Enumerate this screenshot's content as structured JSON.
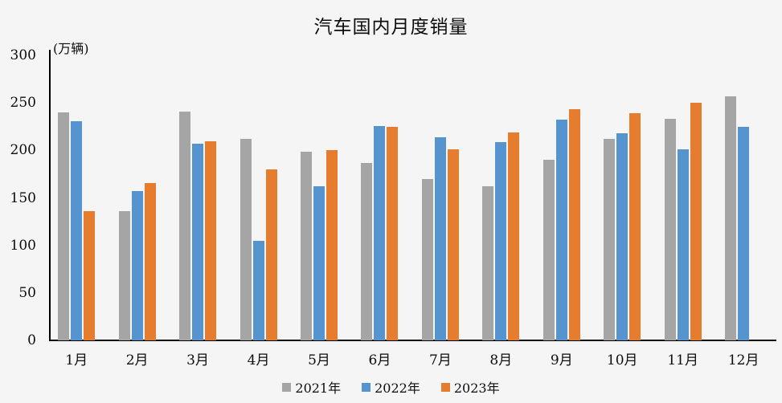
{
  "chart_data": {
    "type": "bar",
    "title": "汽车国内月度销量",
    "unit_label": "(万辆)",
    "xlabel": "",
    "ylabel": "万辆",
    "categories": [
      "1月",
      "2月",
      "3月",
      "4月",
      "5月",
      "6月",
      "7月",
      "8月",
      "9月",
      "10月",
      "11月",
      "12月"
    ],
    "series": [
      {
        "name": "2021年",
        "color": "#A5A5A5",
        "values": [
          240,
          136,
          241,
          212,
          199,
          187,
          170,
          162,
          190,
          212,
          233,
          257
        ]
      },
      {
        "name": "2022年",
        "color": "#5594CE",
        "values": [
          231,
          157,
          207,
          105,
          162,
          226,
          214,
          209,
          232,
          218,
          201,
          225
        ]
      },
      {
        "name": "2023年",
        "color": "#E67C2E",
        "values": [
          136,
          166,
          210,
          180,
          200,
          225,
          201,
          219,
          243,
          239,
          250,
          null
        ]
      }
    ],
    "y_axis": {
      "min": 0,
      "max": 300,
      "step": 50,
      "ticks": [
        0,
        50,
        100,
        150,
        200,
        250,
        300
      ]
    },
    "legend_position": "bottom",
    "grid": false,
    "background": "#F5F5F5",
    "axis_color": "#000000"
  }
}
